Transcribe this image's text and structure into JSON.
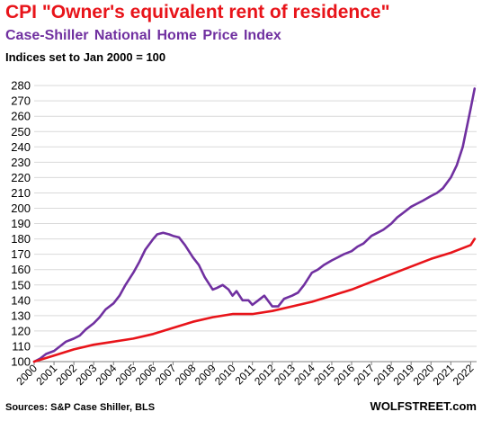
{
  "chart_data": {
    "type": "line",
    "title": "CPI \"Owner's equivalent rent of residence\"",
    "subtitle": "Case-Shiller  National  Home Price Index",
    "note": "Indices set to Jan 2000 = 100",
    "xlabel": "",
    "ylabel": "",
    "xlim": [
      2000,
      2022.3
    ],
    "ylim": [
      100,
      283
    ],
    "y_ticks": [
      100,
      110,
      120,
      130,
      140,
      150,
      160,
      170,
      180,
      190,
      200,
      210,
      220,
      230,
      240,
      250,
      260,
      270,
      280
    ],
    "x_ticks": [
      "2000",
      "2001",
      "2002",
      "2003",
      "2004",
      "2005",
      "2006",
      "2007",
      "2008",
      "2009",
      "2010",
      "2011",
      "2012",
      "2013",
      "2014",
      "2015",
      "2016",
      "2017",
      "2018",
      "2019",
      "2020",
      "2021",
      "2022"
    ],
    "grid": true,
    "series": [
      {
        "color": "#7030a0",
        "x": [
          2000,
          2000.3,
          2000.6,
          2001,
          2001.3,
          2001.6,
          2002,
          2002.3,
          2002.6,
          2003,
          2003.3,
          2003.6,
          2004,
          2004.3,
          2004.6,
          2005,
          2005.3,
          2005.6,
          2006,
          2006.2,
          2006.5,
          2006.8,
          2007,
          2007.3,
          2007.6,
          2008,
          2008.3,
          2008.6,
          2009,
          2009.2,
          2009.5,
          2009.8,
          2010,
          2010.2,
          2010.5,
          2010.8,
          2011,
          2011.3,
          2011.6,
          2012,
          2012.3,
          2012.6,
          2013,
          2013.3,
          2013.6,
          2014,
          2014.3,
          2014.6,
          2015,
          2015.3,
          2015.6,
          2016,
          2016.3,
          2016.6,
          2017,
          2017.3,
          2017.6,
          2018,
          2018.3,
          2018.6,
          2019,
          2019.3,
          2019.6,
          2020,
          2020.3,
          2020.6,
          2021,
          2021.3,
          2021.6,
          2022,
          2022.2
        ],
        "values": [
          100,
          102,
          105,
          107,
          110,
          113,
          115,
          117,
          121,
          125,
          129,
          134,
          138,
          143,
          150,
          158,
          165,
          173,
          180,
          183,
          184,
          183,
          182,
          181,
          176,
          168,
          163,
          155,
          147,
          148,
          150,
          147,
          143,
          146,
          140,
          140,
          137,
          140,
          143,
          136,
          136,
          141,
          143,
          145,
          150,
          158,
          160,
          163,
          166,
          168,
          170,
          172,
          175,
          177,
          182,
          184,
          186,
          190,
          194,
          197,
          201,
          203,
          205,
          208,
          210,
          213,
          220,
          228,
          240,
          265,
          278
        ]
      },
      {
        "color": "#e8141a",
        "x": [
          2000,
          2001,
          2002,
          2003,
          2004,
          2005,
          2006,
          2007,
          2008,
          2009,
          2010,
          2011,
          2012,
          2013,
          2014,
          2015,
          2016,
          2017,
          2018,
          2019,
          2020,
          2021,
          2022,
          2022.2
        ],
        "values": [
          100,
          104,
          108,
          111,
          113,
          115,
          118,
          122,
          126,
          129,
          131,
          131,
          133,
          136,
          139,
          143,
          147,
          152,
          157,
          162,
          167,
          171,
          176,
          180
        ]
      }
    ]
  },
  "footer": {
    "source": "Sources: S&P Case Shiller, BLS",
    "brand": "WOLFSTREET.com"
  }
}
